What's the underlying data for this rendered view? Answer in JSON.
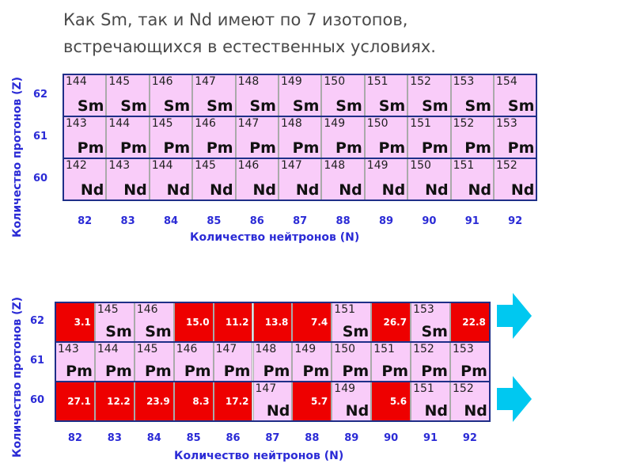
{
  "title": [
    "Как Sm, так и Nd имеют по 7 изотопов,",
    "встречающихся в естественных условиях."
  ],
  "axis": {
    "x_label": "Количество нейтронов (N)",
    "y_label": "Количество протонов (Z)"
  },
  "neutrons": [
    "82",
    "83",
    "84",
    "85",
    "86",
    "87",
    "88",
    "89",
    "90",
    "91",
    "92"
  ],
  "panels": [
    {
      "rows": [
        {
          "z": "62",
          "element": "Sm",
          "cells": [
            {
              "mass": "144"
            },
            {
              "mass": "145"
            },
            {
              "mass": "146"
            },
            {
              "mass": "147"
            },
            {
              "mass": "148"
            },
            {
              "mass": "149"
            },
            {
              "mass": "150"
            },
            {
              "mass": "151"
            },
            {
              "mass": "152"
            },
            {
              "mass": "153"
            },
            {
              "mass": "154"
            }
          ]
        },
        {
          "z": "61",
          "element": "Pm",
          "cells": [
            {
              "mass": "143"
            },
            {
              "mass": "144"
            },
            {
              "mass": "145"
            },
            {
              "mass": "146"
            },
            {
              "mass": "147"
            },
            {
              "mass": "148"
            },
            {
              "mass": "149"
            },
            {
              "mass": "150"
            },
            {
              "mass": "151"
            },
            {
              "mass": "152"
            },
            {
              "mass": "153"
            }
          ]
        },
        {
          "z": "60",
          "element": "Nd",
          "cells": [
            {
              "mass": "142"
            },
            {
              "mass": "143"
            },
            {
              "mass": "144"
            },
            {
              "mass": "145"
            },
            {
              "mass": "146"
            },
            {
              "mass": "147"
            },
            {
              "mass": "148"
            },
            {
              "mass": "149"
            },
            {
              "mass": "150"
            },
            {
              "mass": "151"
            },
            {
              "mass": "152"
            }
          ]
        }
      ]
    },
    {
      "rows": [
        {
          "z": "62",
          "element": "Sm",
          "cells": [
            {
              "abundance": "3.1"
            },
            {
              "mass": "145"
            },
            {
              "mass": "146"
            },
            {
              "abundance": "15.0"
            },
            {
              "abundance": "11.2"
            },
            {
              "abundance": "13.8"
            },
            {
              "abundance": "7.4"
            },
            {
              "mass": "151"
            },
            {
              "abundance": "26.7"
            },
            {
              "mass": "153"
            },
            {
              "abundance": "22.8"
            }
          ]
        },
        {
          "z": "61",
          "element": "Pm",
          "cells": [
            {
              "mass": "143"
            },
            {
              "mass": "144"
            },
            {
              "mass": "145"
            },
            {
              "mass": "146"
            },
            {
              "mass": "147"
            },
            {
              "mass": "148"
            },
            {
              "mass": "149"
            },
            {
              "mass": "150"
            },
            {
              "mass": "151"
            },
            {
              "mass": "152"
            },
            {
              "mass": "153"
            }
          ]
        },
        {
          "z": "60",
          "element": "Nd",
          "cells": [
            {
              "abundance": "27.1"
            },
            {
              "abundance": "12.2"
            },
            {
              "abundance": "23.9"
            },
            {
              "abundance": "8.3"
            },
            {
              "abundance": "17.2"
            },
            {
              "mass": "147"
            },
            {
              "abundance": "5.7"
            },
            {
              "mass": "149"
            },
            {
              "abundance": "5.6"
            },
            {
              "mass": "151"
            },
            {
              "mass": "152"
            }
          ]
        }
      ]
    }
  ],
  "colors": {
    "stable_cell": "#ee0000",
    "cell": "#f9ccf9",
    "axis_text": "#2b2bd6",
    "arrow": "#00c8f0"
  },
  "arrows": [
    "arrow-right-icon",
    "arrow-right-icon"
  ]
}
